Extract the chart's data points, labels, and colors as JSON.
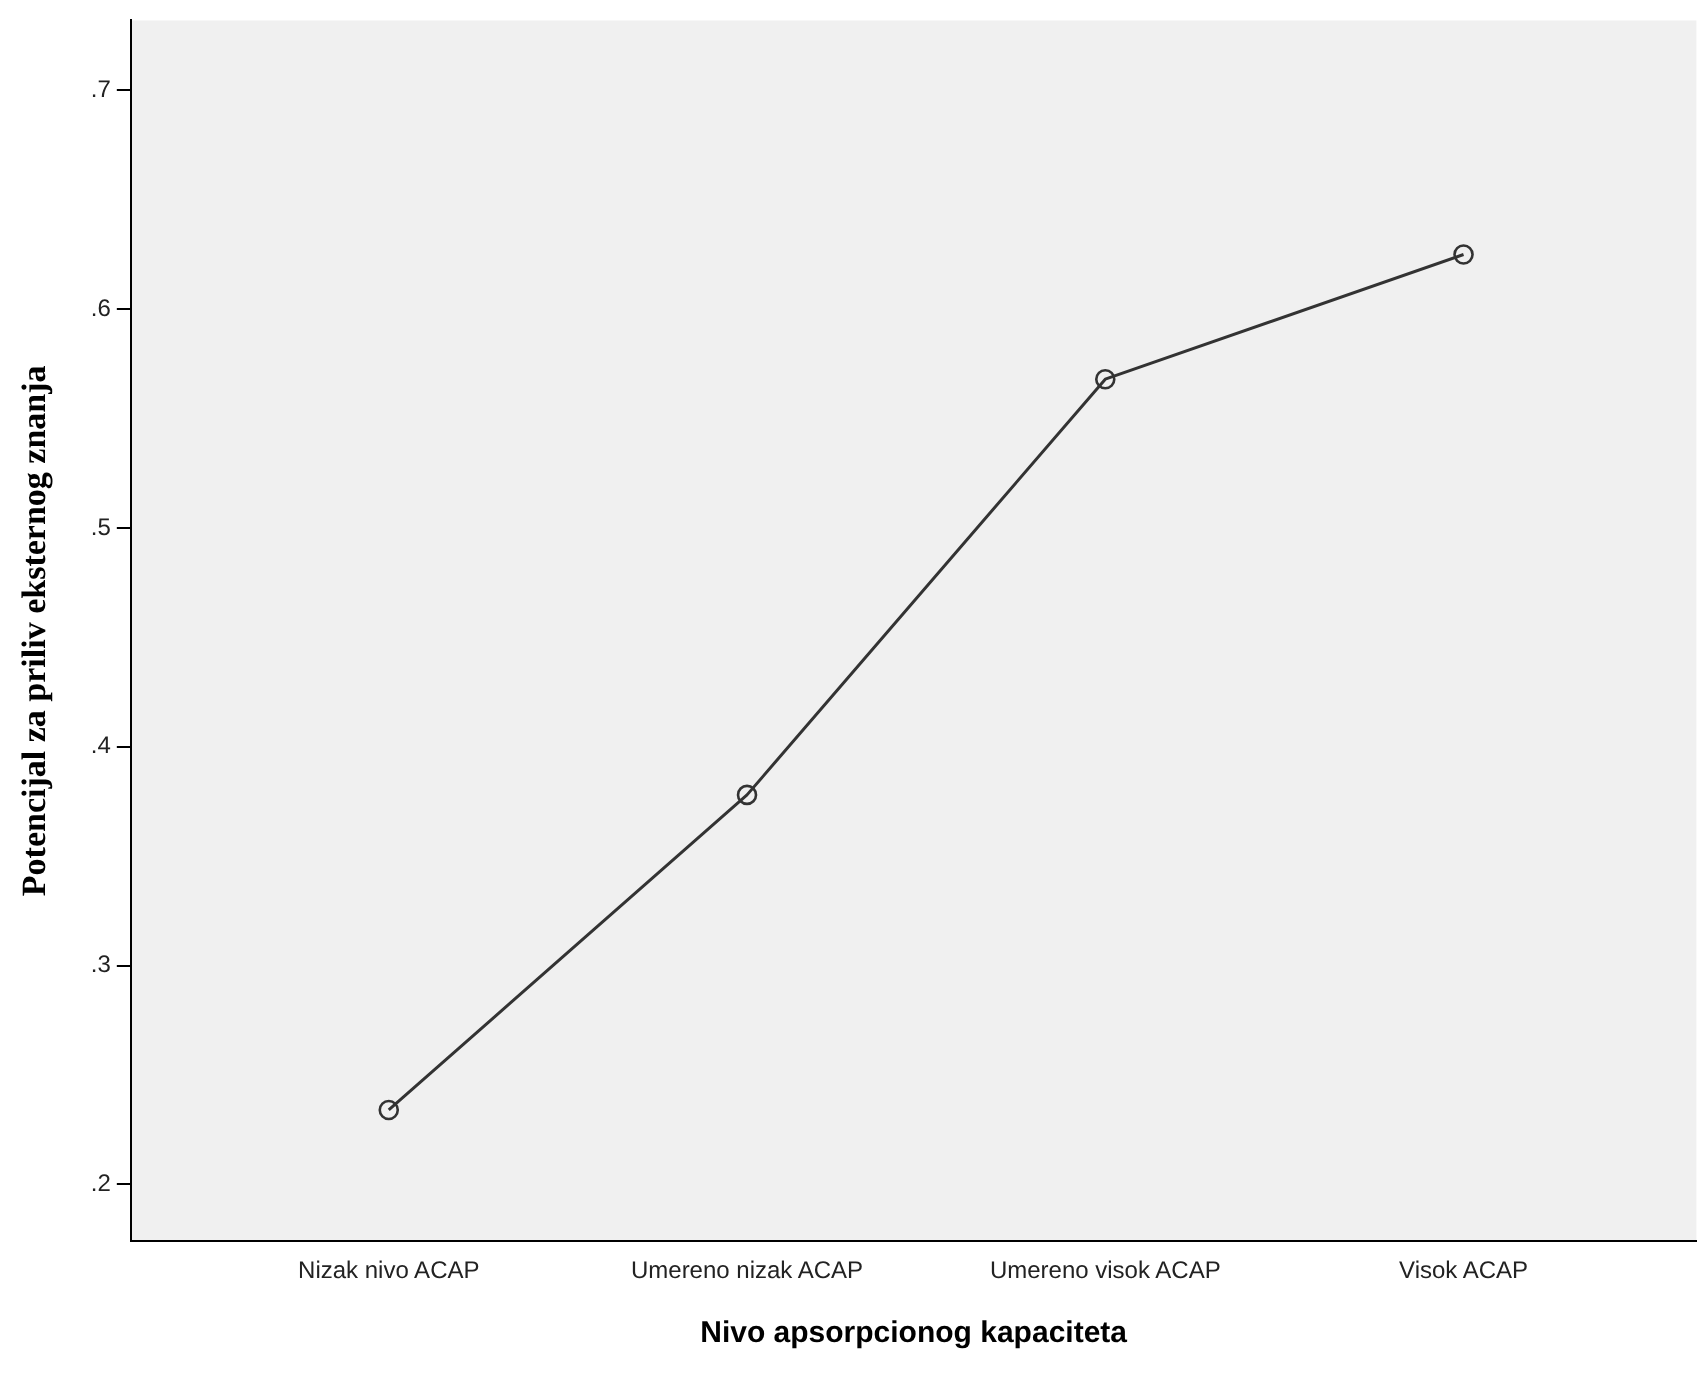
{
  "chart_data": {
    "type": "line",
    "xlabel": "Nivo apsorpcionog kapaciteta",
    "ylabel": "Potencijal za priliv eksternog znanja",
    "categories": [
      "Nizak nivo ACAP",
      "Umereno nizak ACAP",
      "Umereno visok ACAP",
      "Visok ACAP"
    ],
    "series": [
      {
        "color": "#333333",
        "values": [
          0.234,
          0.378,
          0.568,
          0.625
        ]
      }
    ],
    "ylim": [
      0.174,
      0.732
    ],
    "yticks": [
      {
        "value": 0.2,
        "label": ".2"
      },
      {
        "value": 0.3,
        "label": ".3"
      },
      {
        "value": 0.4,
        "label": ".4"
      },
      {
        "value": 0.5,
        "label": ".5"
      },
      {
        "value": 0.6,
        "label": ".6"
      },
      {
        "value": 0.7,
        "label": ".7"
      }
    ],
    "grid": false,
    "legend": false,
    "marker": "circle",
    "line_style": "solid"
  }
}
